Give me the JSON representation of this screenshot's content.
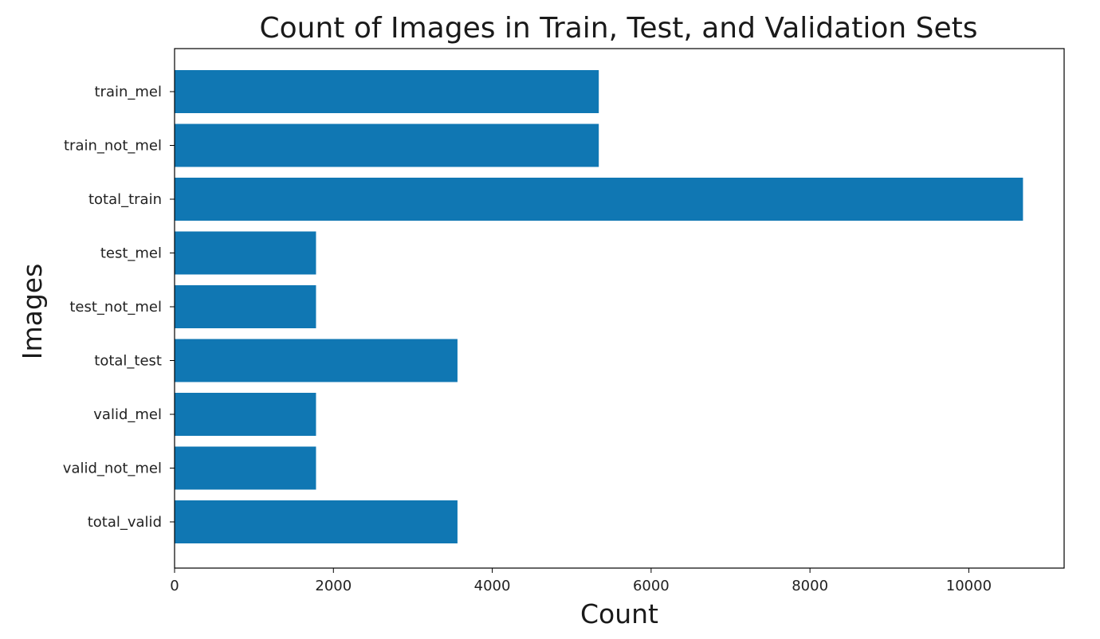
{
  "chart_data": {
    "type": "bar",
    "orientation": "horizontal",
    "title": "Count of Images in Train, Test, and Validation Sets",
    "xlabel": "Count",
    "ylabel": "Images",
    "categories": [
      "train_mel",
      "train_not_mel",
      "total_train",
      "test_mel",
      "test_not_mel",
      "total_test",
      "valid_mel",
      "valid_not_mel",
      "total_valid"
    ],
    "values": [
      5341,
      5341,
      10682,
      1781,
      1781,
      3562,
      1781,
      1781,
      3562
    ],
    "xlim": [
      0,
      11200
    ],
    "xticks": [
      0,
      2000,
      4000,
      6000,
      8000,
      10000
    ],
    "grid": false,
    "bar_color": "#1077b3"
  }
}
